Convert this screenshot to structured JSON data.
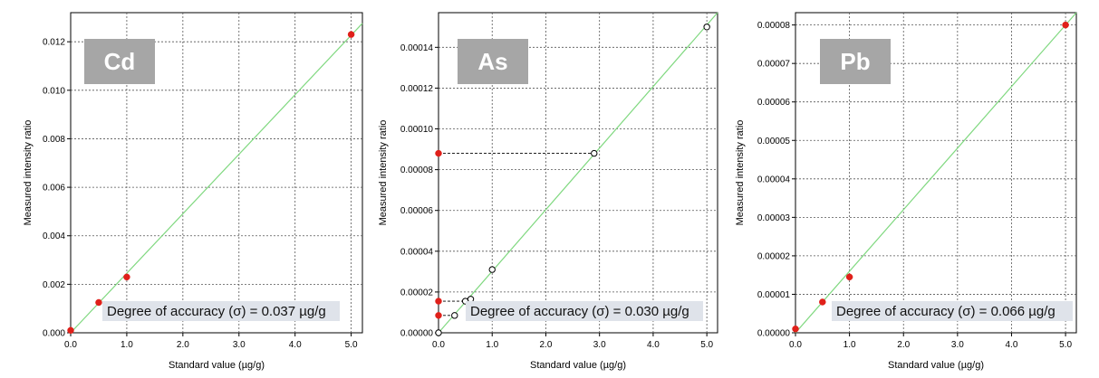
{
  "chart_data": [
    {
      "type": "scatter",
      "element_label": "Cd",
      "xlabel": "Standard value (µg/g)",
      "ylabel": "Measured intensity ratio",
      "xlim": [
        0,
        5.2
      ],
      "ylim": [
        0,
        0.0132
      ],
      "x_ticks": [
        0,
        1,
        2,
        3,
        4,
        5
      ],
      "x_tick_labels": [
        "0.0",
        "1.0",
        "2.0",
        "3.0",
        "4.0",
        "5.0"
      ],
      "y_ticks": [
        0,
        0.002,
        0.004,
        0.006,
        0.008,
        0.01,
        0.012
      ],
      "y_tick_labels": [
        "0.000",
        "0.002",
        "0.004",
        "0.006",
        "0.008",
        "0.010",
        "0.012"
      ],
      "grid": true,
      "calibration_line": {
        "x": [
          0,
          5.2
        ],
        "y": [
          0,
          0.01276
        ]
      },
      "points": [
        {
          "x": 0.0,
          "y": 0.0001,
          "style": "filled"
        },
        {
          "x": 0.5,
          "y": 0.00125,
          "style": "filled"
        },
        {
          "x": 1.0,
          "y": 0.0023,
          "style": "filled"
        },
        {
          "x": 5.0,
          "y": 0.0123,
          "style": "filled"
        }
      ],
      "reference_lines": [],
      "accuracy_text": "Degree of accuracy (σ) = 0.037 µg/g",
      "colors": {
        "line": "#7fd87f",
        "filled": "#e0201a",
        "label_box": "#a6a6a6",
        "accuracy_box": "#dfe3ea"
      }
    },
    {
      "type": "scatter",
      "element_label": "As",
      "xlabel": "Standard value (µg/g)",
      "ylabel": "Measured intensity ratio",
      "xlim": [
        0,
        5.2
      ],
      "ylim": [
        0,
        0.000157
      ],
      "x_ticks": [
        0,
        1,
        2,
        3,
        4,
        5
      ],
      "x_tick_labels": [
        "0.0",
        "1.0",
        "2.0",
        "3.0",
        "4.0",
        "5.0"
      ],
      "y_ticks": [
        0,
        2e-05,
        4e-05,
        6e-05,
        8e-05,
        0.0001,
        0.00012,
        0.00014
      ],
      "y_tick_labels": [
        "0.00000",
        "0.00002",
        "0.00004",
        "0.00006",
        "0.00008",
        "0.00010",
        "0.00012",
        "0.00014"
      ],
      "grid": true,
      "calibration_line": {
        "x": [
          0,
          5.2
        ],
        "y": [
          0,
          0.000157
        ]
      },
      "points": [
        {
          "x": 0.0,
          "y": 0.0,
          "style": "open"
        },
        {
          "x": 0.3,
          "y": 8.5e-06,
          "style": "open"
        },
        {
          "x": 0.5,
          "y": 1.55e-05,
          "style": "open"
        },
        {
          "x": 0.6,
          "y": 1.65e-05,
          "style": "open"
        },
        {
          "x": 1.0,
          "y": 3.1e-05,
          "style": "open"
        },
        {
          "x": 2.9,
          "y": 8.8e-05,
          "style": "open"
        },
        {
          "x": 5.0,
          "y": 0.00015,
          "style": "open"
        },
        {
          "x": 0.0,
          "y": 8.5e-06,
          "style": "filled"
        },
        {
          "x": 0.0,
          "y": 1.55e-05,
          "style": "filled"
        },
        {
          "x": 0.0,
          "y": 8.8e-05,
          "style": "filled"
        }
      ],
      "reference_lines": [
        {
          "x": [
            0.0,
            0.3
          ],
          "y": [
            8.5e-06,
            8.5e-06
          ]
        },
        {
          "x": [
            0.0,
            0.5
          ],
          "y": [
            1.55e-05,
            1.55e-05
          ]
        },
        {
          "x": [
            0.0,
            2.9
          ],
          "y": [
            8.8e-05,
            8.8e-05
          ]
        }
      ],
      "accuracy_text": "Degree of accuracy (σ) = 0.030 µg/g",
      "colors": {
        "line": "#7fd87f",
        "filled": "#e0201a",
        "label_box": "#a6a6a6",
        "accuracy_box": "#dfe3ea"
      }
    },
    {
      "type": "scatter",
      "element_label": "Pb",
      "xlabel": "Standard value (µg/g)",
      "ylabel": "Measured intensity ratio",
      "xlim": [
        0,
        5.2
      ],
      "ylim": [
        0,
        8.32e-05
      ],
      "x_ticks": [
        0,
        1,
        2,
        3,
        4,
        5
      ],
      "x_tick_labels": [
        "0.0",
        "1.0",
        "2.0",
        "3.0",
        "4.0",
        "5.0"
      ],
      "y_ticks": [
        0,
        1e-05,
        2e-05,
        3e-05,
        4e-05,
        5e-05,
        6e-05,
        7e-05,
        8e-05
      ],
      "y_tick_labels": [
        "0.00000",
        "0.00001",
        "0.00002",
        "0.00003",
        "0.00004",
        "0.00005",
        "0.00006",
        "0.00007",
        "0.00008"
      ],
      "grid": true,
      "calibration_line": {
        "x": [
          0,
          5.2
        ],
        "y": [
          0,
          8.32e-05
        ]
      },
      "points": [
        {
          "x": 0.0,
          "y": 1e-06,
          "style": "filled"
        },
        {
          "x": 0.5,
          "y": 8e-06,
          "style": "filled"
        },
        {
          "x": 1.0,
          "y": 1.45e-05,
          "style": "filled"
        },
        {
          "x": 5.0,
          "y": 8e-05,
          "style": "filled"
        }
      ],
      "reference_lines": [],
      "accuracy_text": "Degree of accuracy (σ) = 0.066 µg/g",
      "colors": {
        "line": "#7fd87f",
        "filled": "#e0201a",
        "label_box": "#a6a6a6",
        "accuracy_box": "#dfe3ea"
      }
    }
  ]
}
